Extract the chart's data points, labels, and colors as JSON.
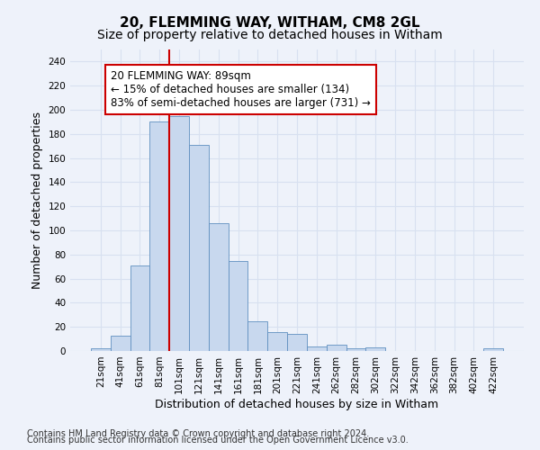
{
  "title1": "20, FLEMMING WAY, WITHAM, CM8 2GL",
  "title2": "Size of property relative to detached houses in Witham",
  "xlabel": "Distribution of detached houses by size in Witham",
  "ylabel": "Number of detached properties",
  "categories": [
    "21sqm",
    "41sqm",
    "61sqm",
    "81sqm",
    "101sqm",
    "121sqm",
    "141sqm",
    "161sqm",
    "181sqm",
    "201sqm",
    "221sqm",
    "241sqm",
    "262sqm",
    "282sqm",
    "302sqm",
    "322sqm",
    "342sqm",
    "362sqm",
    "382sqm",
    "402sqm",
    "422sqm"
  ],
  "values": [
    2,
    13,
    71,
    190,
    195,
    171,
    106,
    75,
    25,
    16,
    14,
    4,
    5,
    2,
    3,
    0,
    0,
    0,
    0,
    0,
    2
  ],
  "bar_color": "#c8d8ee",
  "bar_edge_color": "#6090c0",
  "vline_color": "#cc0000",
  "vline_x_index": 4,
  "annotation_text": "20 FLEMMING WAY: 89sqm\n← 15% of detached houses are smaller (134)\n83% of semi-detached houses are larger (731) →",
  "annotation_box_color": "#ffffff",
  "annotation_box_edge": "#cc0000",
  "ylim": [
    0,
    250
  ],
  "yticks": [
    0,
    20,
    40,
    60,
    80,
    100,
    120,
    140,
    160,
    180,
    200,
    220,
    240
  ],
  "footnote1": "Contains HM Land Registry data © Crown copyright and database right 2024.",
  "footnote2": "Contains public sector information licensed under the Open Government Licence v3.0.",
  "background_color": "#eef2fa",
  "grid_color": "#d8e0f0",
  "title_fontsize": 11,
  "subtitle_fontsize": 10,
  "axis_label_fontsize": 9,
  "tick_fontsize": 7.5,
  "annotation_fontsize": 8.5,
  "footnote_fontsize": 7
}
